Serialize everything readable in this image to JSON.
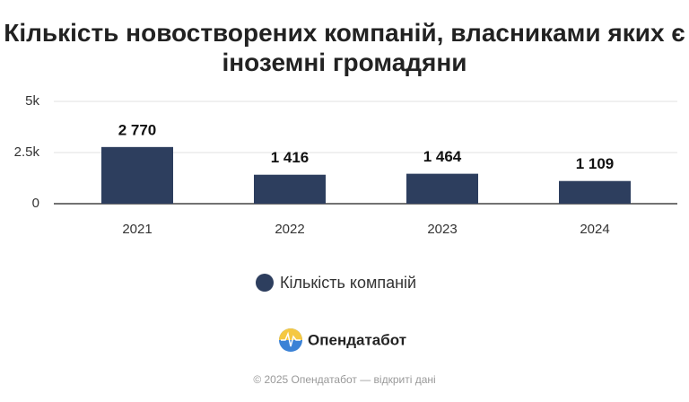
{
  "chart_data": {
    "type": "bar",
    "title": "Кількість новостворених компаній, власниками яких є іноземні громадяни",
    "categories": [
      "2021",
      "2022",
      "2023",
      "2024"
    ],
    "series": [
      {
        "name": "Кількість компаній",
        "color": "#2d3e5e",
        "values": [
          2770,
          1416,
          1464,
          1109
        ],
        "value_labels": [
          "2 770",
          "1 416",
          "1 464",
          "1 109"
        ]
      }
    ],
    "ylim": [
      0,
      5000
    ],
    "yticks": [
      0,
      {
        "value": 2500,
        "label": "2.5k"
      },
      {
        "value": 5000,
        "label": "5k"
      }
    ],
    "grid": true
  },
  "logo": "Опендатабот",
  "footer": "© 2025 Опендатабот — відкриті дані"
}
